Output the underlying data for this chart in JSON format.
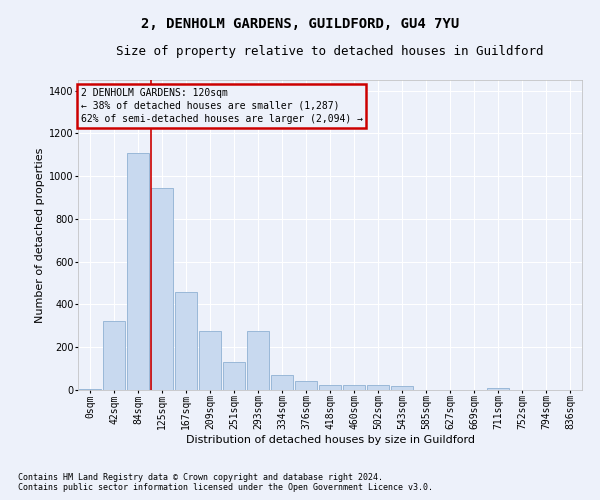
{
  "title": "2, DENHOLM GARDENS, GUILDFORD, GU4 7YU",
  "subtitle": "Size of property relative to detached houses in Guildford",
  "xlabel": "Distribution of detached houses by size in Guildford",
  "ylabel": "Number of detached properties",
  "footnote1": "Contains HM Land Registry data © Crown copyright and database right 2024.",
  "footnote2": "Contains public sector information licensed under the Open Government Licence v3.0.",
  "bar_labels": [
    "0sqm",
    "42sqm",
    "84sqm",
    "125sqm",
    "167sqm",
    "209sqm",
    "251sqm",
    "293sqm",
    "334sqm",
    "376sqm",
    "418sqm",
    "460sqm",
    "502sqm",
    "543sqm",
    "585sqm",
    "627sqm",
    "669sqm",
    "711sqm",
    "752sqm",
    "794sqm",
    "836sqm"
  ],
  "bar_values": [
    5,
    325,
    1110,
    945,
    460,
    275,
    130,
    275,
    70,
    40,
    25,
    25,
    25,
    20,
    0,
    0,
    0,
    10,
    0,
    0,
    0
  ],
  "bar_color": "#c8d9ef",
  "bar_edge_color": "#9ab8d8",
  "background_color": "#edf1fa",
  "grid_color": "#ffffff",
  "annotation_text": "2 DENHOLM GARDENS: 120sqm\n← 38% of detached houses are smaller (1,287)\n62% of semi-detached houses are larger (2,094) →",
  "annotation_box_facecolor": "#edf1fa",
  "annotation_box_edgecolor": "#cc0000",
  "redline_index": 3,
  "ylim": [
    0,
    1450
  ],
  "yticks": [
    0,
    200,
    400,
    600,
    800,
    1000,
    1200,
    1400
  ],
  "title_fontsize": 10,
  "subtitle_fontsize": 9,
  "ylabel_fontsize": 8,
  "xlabel_fontsize": 8,
  "tick_fontsize": 7,
  "annot_fontsize": 7,
  "footnote_fontsize": 6
}
